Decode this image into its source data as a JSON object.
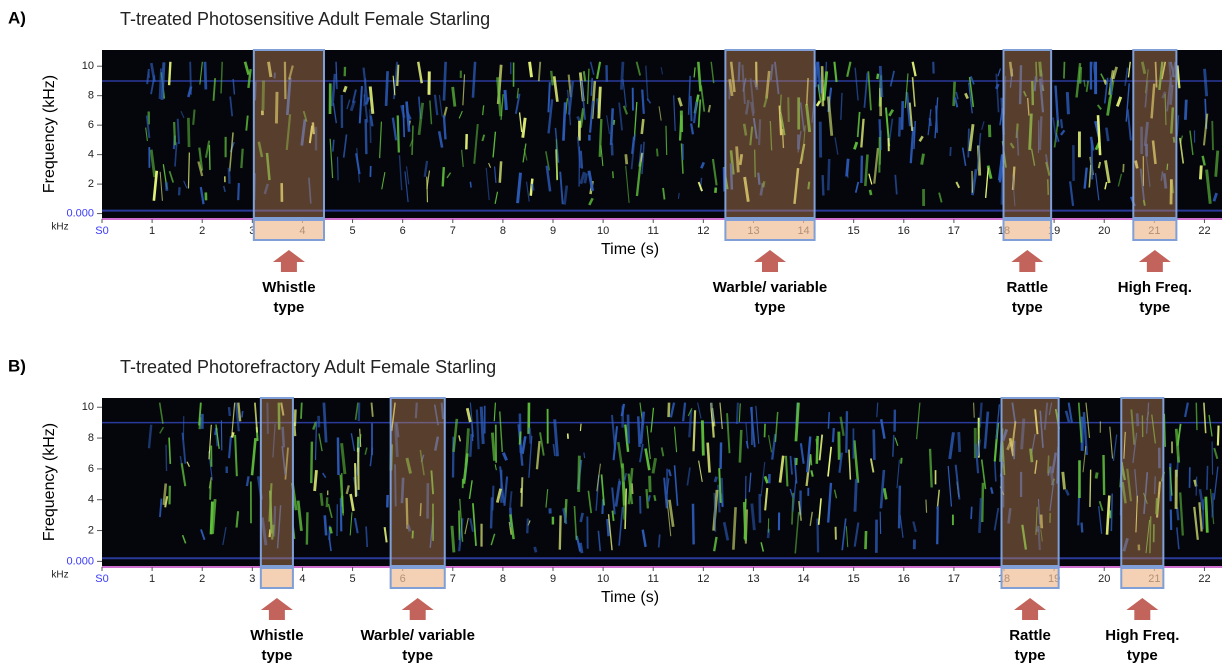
{
  "panels": [
    {
      "letter": "A)",
      "title": "T-treated Photosensitive Adult Female Starling",
      "y_label": "Frequency (kHz)",
      "y_unit": "kHz",
      "ylim": [
        -0.3,
        11.1
      ],
      "yticks": [
        {
          "value": 0,
          "label": "0.000"
        },
        2,
        4,
        6,
        8,
        10
      ],
      "x_label": "Time (s)",
      "xlim": [
        0,
        22.35
      ],
      "xticks": [
        {
          "value": 0,
          "label": "S0"
        },
        1,
        2,
        3,
        4,
        5,
        6,
        7,
        8,
        9,
        10,
        11,
        12,
        13,
        14,
        15,
        16,
        17,
        18,
        19,
        20,
        21,
        22
      ],
      "highlights": [
        {
          "start": 3.03,
          "end": 4.43,
          "label": [
            "Whistle",
            "type"
          ]
        },
        {
          "start": 12.44,
          "end": 14.22,
          "label": [
            "Warble/ variable",
            "type"
          ]
        },
        {
          "start": 17.99,
          "end": 18.94,
          "label": [
            "Rattle",
            "type"
          ]
        },
        {
          "start": 20.58,
          "end": 21.44,
          "label": [
            "High Freq.",
            "type"
          ]
        }
      ]
    },
    {
      "letter": "B)",
      "title": "T-treated Photorefractory Adult Female Starling",
      "y_label": "Frequency (kHz)",
      "y_unit": "kHz",
      "ylim": [
        -0.3,
        10.6
      ],
      "yticks": [
        {
          "value": 0,
          "label": "0.000"
        },
        2,
        4,
        6,
        8,
        10
      ],
      "x_label": "Time (s)",
      "xlim": [
        0,
        22.35
      ],
      "xticks": [
        {
          "value": 0,
          "label": "S0"
        },
        1,
        2,
        3,
        4,
        5,
        6,
        7,
        8,
        9,
        10,
        11,
        12,
        13,
        14,
        15,
        16,
        17,
        18,
        19,
        20,
        21,
        22
      ],
      "highlights": [
        {
          "start": 3.17,
          "end": 3.81,
          "label": [
            "Whistle",
            "type"
          ]
        },
        {
          "start": 5.76,
          "end": 6.84,
          "label": [
            "Warble/ variable",
            "type"
          ]
        },
        {
          "start": 17.95,
          "end": 19.09,
          "label": [
            "Rattle",
            "type"
          ]
        },
        {
          "start": 20.34,
          "end": 21.18,
          "label": [
            "High Freq.",
            "type"
          ]
        }
      ]
    }
  ]
}
